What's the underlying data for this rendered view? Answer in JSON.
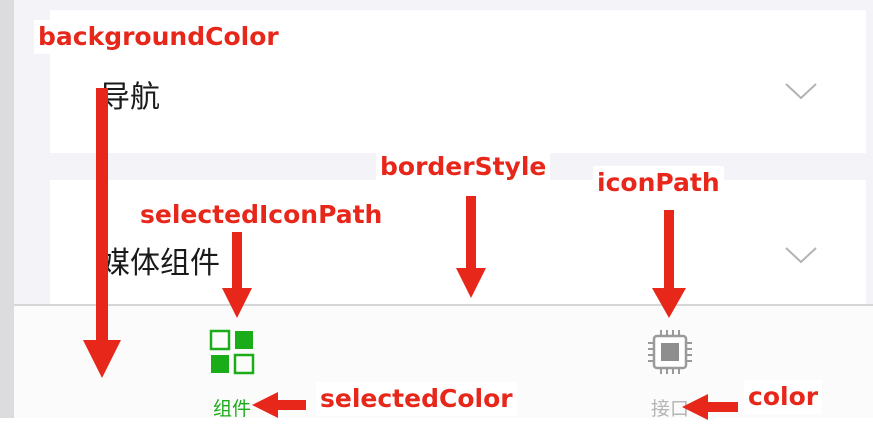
{
  "cards": [
    {
      "label": "导航",
      "icon": "chevron-down-icon"
    },
    {
      "label": "媒体组件",
      "icon": "chevron-down-icon"
    }
  ],
  "tabbar": {
    "tabs": [
      {
        "label": "组件",
        "icon": "components-grid-icon",
        "selected": true
      },
      {
        "label": "接口",
        "icon": "chip-icon",
        "selected": false
      }
    ],
    "selected_color": "#1aad19",
    "color": "#b5b5b5",
    "border_color": "#d6d6d6",
    "background_color": "#fbfbfb"
  },
  "annotations": {
    "background_color": "backgroundColor",
    "border_style": "borderStyle",
    "icon_path": "iconPath",
    "selected_icon_path": "selectedIconPath",
    "selected_color": "selectedColor",
    "color": "color",
    "accent": "#e8271b"
  }
}
